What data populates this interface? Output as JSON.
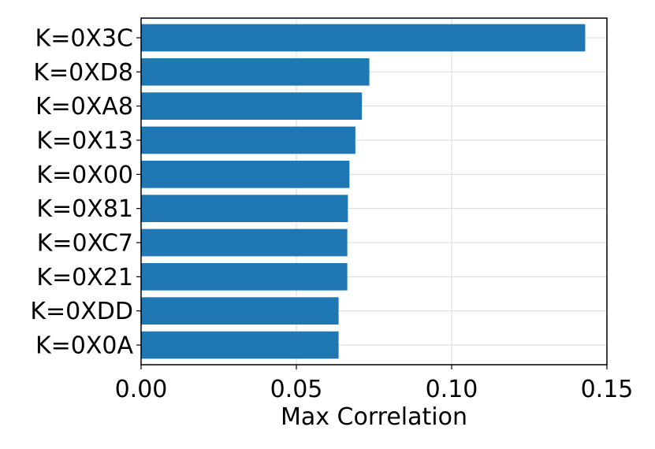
{
  "chart_data": {
    "type": "bar",
    "orientation": "horizontal",
    "title": "",
    "xlabel": "Max Correlation",
    "ylabel": "",
    "xlim": [
      0,
      0.15
    ],
    "xticks": [
      0,
      0.05,
      0.1,
      0.15
    ],
    "xtick_labels": [
      "0.00",
      "0.05",
      "0.10",
      "0.15"
    ],
    "grid": true,
    "bar_color": "#1f77b4",
    "categories": [
      "K=0X3C",
      "K=0XD8",
      "K=0XA8",
      "K=0X13",
      "K=0X00",
      "K=0X81",
      "K=0XC7",
      "K=0X21",
      "K=0XDD",
      "K=0X0A"
    ],
    "values": [
      0.143,
      0.0735,
      0.0711,
      0.069,
      0.0671,
      0.0666,
      0.0664,
      0.0664,
      0.0636,
      0.0636
    ]
  }
}
